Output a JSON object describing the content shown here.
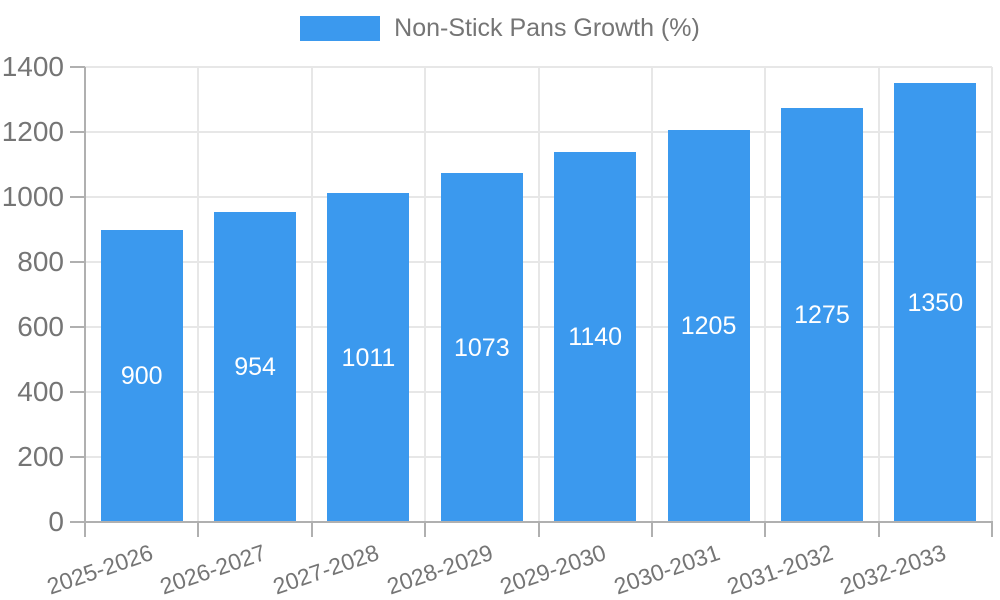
{
  "legend": {
    "label": "Non-Stick Pans Growth (%)"
  },
  "chart_data": {
    "type": "bar",
    "title": "",
    "categories": [
      "2025-2026",
      "2026-2027",
      "2027-2028",
      "2028-2029",
      "2029-2030",
      "2030-2031",
      "2031-2032",
      "2032-2033"
    ],
    "series": [
      {
        "name": "Non-Stick Pans Growth (%)",
        "values": [
          900,
          954,
          1011,
          1073,
          1140,
          1205,
          1275,
          1350
        ]
      }
    ],
    "bar_value_labels": [
      "900",
      "954",
      "1011",
      "1073",
      "1140",
      "1205",
      "1275",
      "1350"
    ],
    "xlabel": "",
    "ylabel": "",
    "ylim": [
      0,
      1400
    ],
    "yticks": [
      0,
      200,
      400,
      600,
      800,
      1000,
      1200,
      1400
    ],
    "legend_position": "top",
    "grid": true,
    "x_tick_rotation_deg": -19,
    "colors": {
      "bar": "#3b99ee",
      "axis": "#b0b0b0",
      "gridline": "#e7e7e7",
      "tick_text": "#757575",
      "bar_value_text": "#ffffff",
      "background": "#ffffff"
    }
  }
}
